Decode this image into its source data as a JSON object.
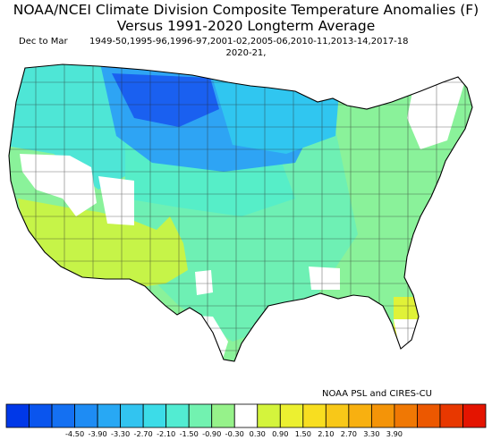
{
  "title": {
    "line1": "NOAA/NCEI Climate Division Composite Temperature Anomalies (F)",
    "line2": "Versus 1991-2020 Longterm Average"
  },
  "period": "Dec to Mar",
  "years": {
    "line1": "1949-50,1995-96,1996-97,2001-02,2005-06,2010-11,2013-14,2017-18",
    "line2": "2020-21,"
  },
  "credit": "NOAA PSL and CIRES-CU",
  "legend": {
    "ticks": [
      "-4.50",
      "-3.90",
      "-3.30",
      "-2.70",
      "-2.10",
      "-1.50",
      "-0.90",
      "-0.30",
      "0.30",
      "0.90",
      "1.50",
      "2.10",
      "2.70",
      "3.30",
      "3.90"
    ],
    "colors": [
      "#0038e8",
      "#0a55ee",
      "#1470f2",
      "#1e8cf4",
      "#28a8f4",
      "#32c4f0",
      "#3cdce8",
      "#52ecd2",
      "#72f2b0",
      "#96f28a",
      "#ffffff",
      "#d4f43c",
      "#ecf030",
      "#f8de20",
      "#f8c818",
      "#f8b010",
      "#f49408",
      "#f07804",
      "#ec5800",
      "#e83800",
      "#e41400"
    ]
  },
  "map": {
    "regions": [
      {
        "name": "north-plains-core",
        "color": "#1a60f0"
      },
      {
        "name": "northern-rockies-plains",
        "color": "#2ea4f4"
      },
      {
        "name": "upper-midwest",
        "color": "#30c6f0"
      },
      {
        "name": "pacific-northwest",
        "color": "#4ee6d6"
      },
      {
        "name": "central-plains",
        "color": "#56eec8"
      },
      {
        "name": "midwest-south",
        "color": "#6ef0b4"
      },
      {
        "name": "southeast-east",
        "color": "#8af29a"
      },
      {
        "name": "southwest",
        "color": "#c6f448"
      },
      {
        "name": "florida-peninsula",
        "color": "#e0f238"
      }
    ]
  }
}
